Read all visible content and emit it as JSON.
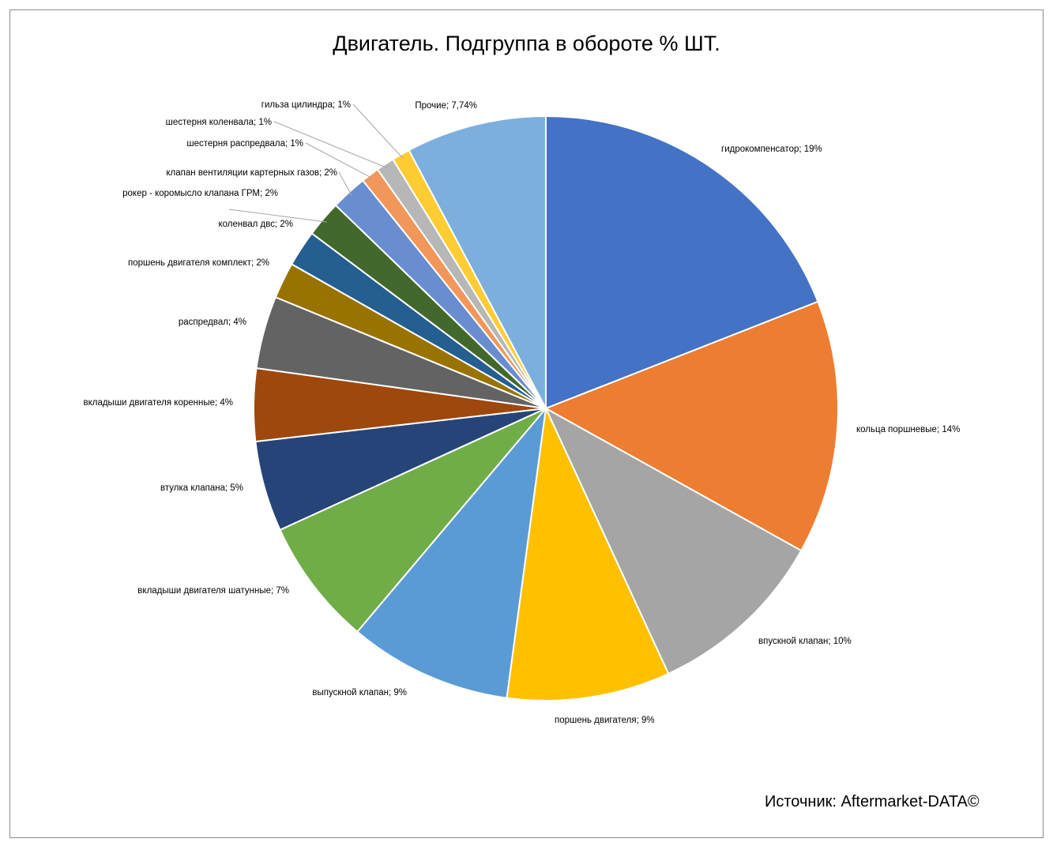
{
  "source_note": "Источник: Aftermarket-DATA©",
  "chart_data": {
    "type": "pie",
    "title": "Двигатель. Подгруппа в обороте % ШТ.",
    "legend": "none",
    "slices": [
      {
        "name": "гидрокомпенсатор",
        "value": 19,
        "label": "гидрокомпенсатор; 19%",
        "color": "#4472C4"
      },
      {
        "name": "кольца поршневые",
        "value": 14,
        "label": "кольца поршневые; 14%",
        "color": "#ED7D31"
      },
      {
        "name": "впускной клапан",
        "value": 10,
        "label": "впускной клапан; 10%",
        "color": "#A5A5A5"
      },
      {
        "name": "поршень двигателя",
        "value": 9,
        "label": "поршень двигателя; 9%",
        "color": "#FFC000"
      },
      {
        "name": "выпускной клапан",
        "value": 9,
        "label": "выпускной клапан; 9%",
        "color": "#5B9BD5"
      },
      {
        "name": "вкладыши двигателя шатунные",
        "value": 7,
        "label": "вкладыши двигателя шатунные; 7%",
        "color": "#70AD47"
      },
      {
        "name": "втулка клапана",
        "value": 5,
        "label": "втулка клапана; 5%",
        "color": "#264478"
      },
      {
        "name": "вкладыши двигателя коренные",
        "value": 4,
        "label": "вкладыши двигателя коренные; 4%",
        "color": "#9E480E"
      },
      {
        "name": "распредвал",
        "value": 4,
        "label": "распредвал; 4%",
        "color": "#636363"
      },
      {
        "name": "поршень двигателя комплект",
        "value": 2,
        "label": "поршень двигателя комплект; 2%",
        "color": "#997300"
      },
      {
        "name": "коленвал двс",
        "value": 2,
        "label": "коленвал двс; 2%",
        "color": "#255E91"
      },
      {
        "name": "рокер - коромысло клапана ГРМ",
        "value": 2,
        "label": "рокер - коромысло клапана ГРМ; 2%",
        "color": "#43682B"
      },
      {
        "name": "клапан вентиляции картерных газов",
        "value": 2,
        "label": "клапан вентиляции картерных газов; 2%",
        "color": "#698ED0"
      },
      {
        "name": "шестерня распредвала",
        "value": 1,
        "label": "шестерня распредвала; 1%",
        "color": "#F1975A"
      },
      {
        "name": "шестерня коленвала",
        "value": 1,
        "label": "шестерня коленвала; 1%",
        "color": "#B7B7B7"
      },
      {
        "name": "гильза цилиндра",
        "value": 1,
        "label": "гильза цилиндра; 1%",
        "color": "#FFCD33"
      },
      {
        "name": "Прочие",
        "value": 7.74,
        "label": "Прочие; 7,74%",
        "color": "#7CAFDD"
      }
    ]
  }
}
